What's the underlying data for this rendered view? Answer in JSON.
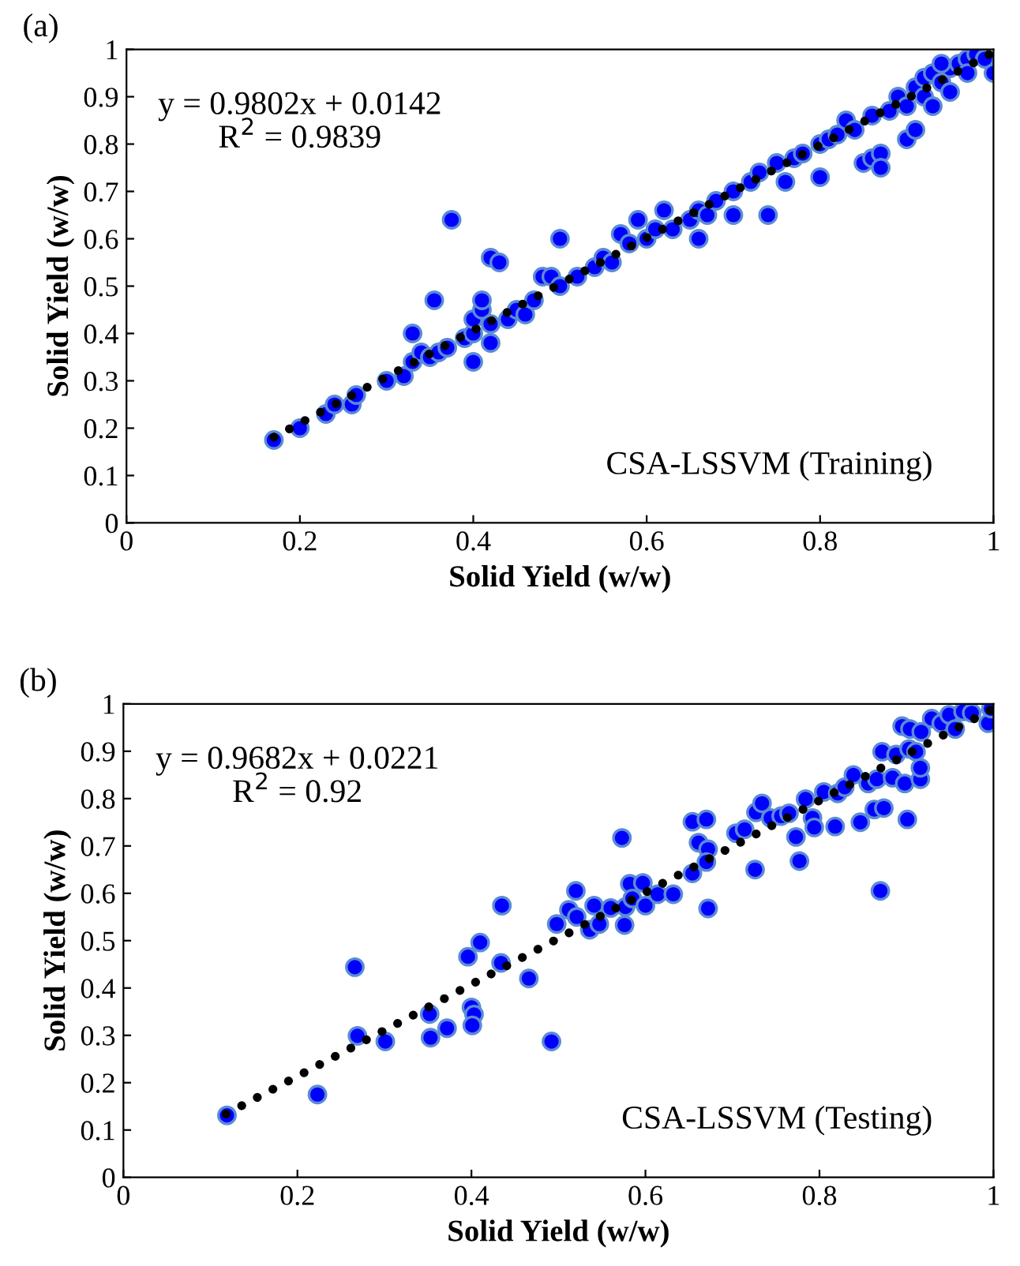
{
  "chart_data": [
    {
      "type": "scatter",
      "title": "(a)",
      "xlabel": "Solid Yield (w/w)",
      "ylabel": "Solid Yield (w/w)",
      "annotations": [
        "y = 0.9802x + 0.0142",
        "R$^{2}$ = 0.9839",
        "CSA-LSSVM (Training)"
      ],
      "xlim": [
        0,
        1
      ],
      "ylim": [
        0,
        1
      ],
      "xticks": [
        0,
        0.2,
        0.4,
        0.6,
        0.8,
        1
      ],
      "yticks": [
        0,
        0.1,
        0.2,
        0.3,
        0.4,
        0.5,
        0.6,
        0.7,
        0.8,
        0.9,
        1
      ],
      "grid": false,
      "legend": false,
      "series": [
        {
          "color": "#0000ff",
          "marker": "circle",
          "x": [
            0.17,
            0.2,
            0.23,
            0.24,
            0.26,
            0.265,
            0.3,
            0.32,
            0.33,
            0.33,
            0.34,
            0.35,
            0.355,
            0.36,
            0.375,
            0.37,
            0.39,
            0.4,
            0.4,
            0.4,
            0.41,
            0.41,
            0.42,
            0.43,
            0.42,
            0.42,
            0.44,
            0.45,
            0.46,
            0.47,
            0.48,
            0.49,
            0.5,
            0.5,
            0.52,
            0.54,
            0.55,
            0.56,
            0.57,
            0.58,
            0.59,
            0.6,
            0.61,
            0.62,
            0.63,
            0.65,
            0.66,
            0.66,
            0.67,
            0.68,
            0.7,
            0.7,
            0.72,
            0.73,
            0.74,
            0.75,
            0.76,
            0.77,
            0.78,
            0.8,
            0.8,
            0.81,
            0.82,
            0.83,
            0.84,
            0.85,
            0.86,
            0.86,
            0.87,
            0.87,
            0.88,
            0.89,
            0.9,
            0.9,
            0.91,
            0.91,
            0.92,
            0.92,
            0.93,
            0.93,
            0.94,
            0.95,
            0.95,
            0.96,
            0.97,
            0.98,
            0.99,
            1.0,
            0.97,
            0.94
          ],
          "values": [
            0.175,
            0.2,
            0.23,
            0.25,
            0.25,
            0.27,
            0.3,
            0.31,
            0.34,
            0.4,
            0.36,
            0.35,
            0.47,
            0.36,
            0.64,
            0.37,
            0.39,
            0.34,
            0.4,
            0.43,
            0.45,
            0.47,
            0.56,
            0.55,
            0.38,
            0.42,
            0.43,
            0.45,
            0.44,
            0.47,
            0.52,
            0.52,
            0.6,
            0.5,
            0.52,
            0.54,
            0.56,
            0.55,
            0.61,
            0.59,
            0.64,
            0.6,
            0.62,
            0.66,
            0.62,
            0.64,
            0.6,
            0.66,
            0.65,
            0.68,
            0.7,
            0.65,
            0.72,
            0.74,
            0.65,
            0.76,
            0.72,
            0.77,
            0.78,
            0.8,
            0.73,
            0.81,
            0.82,
            0.85,
            0.83,
            0.76,
            0.77,
            0.86,
            0.78,
            0.75,
            0.87,
            0.9,
            0.88,
            0.81,
            0.92,
            0.83,
            0.94,
            0.9,
            0.88,
            0.95,
            0.93,
            0.96,
            0.91,
            0.97,
            0.98,
            0.99,
            0.98,
            0.95,
            0.95,
            0.97
          ]
        },
        {
          "type": "line",
          "color": "#000000",
          "line_style": "dotted",
          "x": [
            0.17,
            1.0
          ],
          "values": [
            0.181,
            0.994
          ]
        }
      ]
    },
    {
      "type": "scatter",
      "title": "(b)",
      "xlabel": "Solid Yield (w/w)",
      "ylabel": "Solid Yield (w/w)",
      "annotations": [
        "y = 0.9682x + 0.0221",
        "R$^{2}$ = 0.92",
        "CSA-LSSVM (Testing)"
      ],
      "xlim": [
        0,
        1
      ],
      "ylim": [
        0,
        1
      ],
      "xticks": [
        0,
        0.2,
        0.4,
        0.6,
        0.8,
        1
      ],
      "yticks": [
        0,
        0.1,
        0.2,
        0.3,
        0.4,
        0.5,
        0.6,
        0.7,
        0.8,
        0.9,
        1
      ],
      "grid": false,
      "legend": false,
      "series": [
        {
          "color": "#0000ff",
          "marker": "circle",
          "x": [
            0.119,
            0.223,
            0.266,
            0.269,
            0.301,
            0.352,
            0.353,
            0.372,
            0.396,
            0.41,
            0.4,
            0.403,
            0.401,
            0.435,
            0.434,
            0.466,
            0.492,
            0.498,
            0.512,
            0.52,
            0.521,
            0.536,
            0.541,
            0.547,
            0.56,
            0.573,
            0.576,
            0.577,
            0.582,
            0.585,
            0.597,
            0.6,
            0.614,
            0.632,
            0.654,
            0.661,
            0.67,
            0.672,
            0.672,
            0.67,
            0.654,
            0.704,
            0.714,
            0.726,
            0.727,
            0.734,
            0.744,
            0.756,
            0.765,
            0.773,
            0.777,
            0.784,
            0.792,
            0.794,
            0.805,
            0.818,
            0.821,
            0.829,
            0.839,
            0.847,
            0.856,
            0.863,
            0.866,
            0.87,
            0.874,
            0.872,
            0.884,
            0.888,
            0.898,
            0.901,
            0.903,
            0.911,
            0.916,
            0.916,
            0.895,
            0.904,
            0.917,
            0.929,
            0.94,
            0.949,
            0.956,
            0.965,
            0.975,
            0.994,
            0.997
          ],
          "values": [
            0.131,
            0.175,
            0.444,
            0.299,
            0.287,
            0.345,
            0.295,
            0.315,
            0.466,
            0.496,
            0.359,
            0.344,
            0.321,
            0.574,
            0.453,
            0.42,
            0.287,
            0.535,
            0.565,
            0.605,
            0.55,
            0.523,
            0.574,
            0.535,
            0.569,
            0.717,
            0.533,
            0.571,
            0.62,
            0.589,
            0.622,
            0.574,
            0.598,
            0.598,
            0.751,
            0.707,
            0.756,
            0.693,
            0.568,
            0.666,
            0.642,
            0.727,
            0.735,
            0.65,
            0.771,
            0.79,
            0.759,
            0.763,
            0.769,
            0.719,
            0.668,
            0.799,
            0.759,
            0.739,
            0.814,
            0.741,
            0.811,
            0.824,
            0.85,
            0.75,
            0.832,
            0.777,
            0.841,
            0.605,
            0.78,
            0.899,
            0.844,
            0.893,
            0.832,
            0.756,
            0.905,
            0.899,
            0.841,
            0.865,
            0.953,
            0.947,
            0.941,
            0.969,
            0.959,
            0.977,
            0.947,
            0.984,
            0.981,
            0.959,
            0.99
          ]
        },
        {
          "type": "line",
          "color": "#000000",
          "line_style": "dotted",
          "x": [
            0.118,
            1.0
          ],
          "values": [
            0.134,
            0.99
          ]
        }
      ]
    }
  ]
}
